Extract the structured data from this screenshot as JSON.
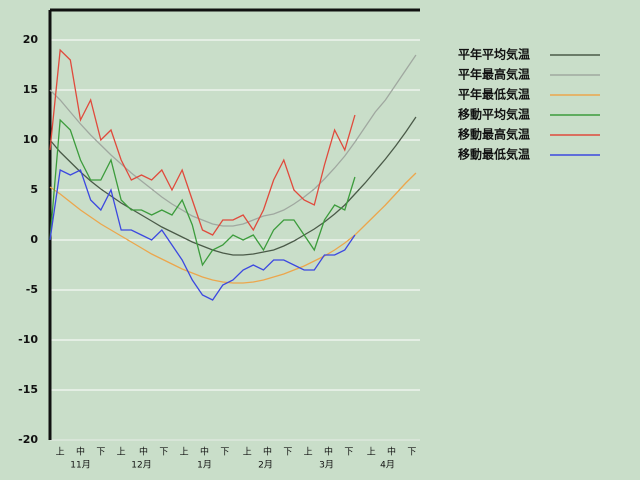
{
  "chart_data": {
    "type": "line",
    "x": [
      0,
      5,
      10,
      15,
      20,
      25,
      30,
      35,
      40,
      45,
      50,
      55,
      60,
      65,
      70,
      75,
      80,
      85,
      90,
      95,
      100,
      105,
      110,
      115,
      120,
      125,
      130,
      135,
      140,
      145,
      150,
      155,
      160,
      165,
      170,
      175,
      180
    ],
    "xlim": [
      0,
      182
    ],
    "ylim": [
      -20,
      23
    ],
    "yticks": [
      -20,
      -15,
      -10,
      -5,
      0,
      5,
      10,
      15,
      20
    ],
    "grid": true,
    "legend": "right",
    "xticks": [
      {
        "value": 5,
        "label": "上"
      },
      {
        "value": 15,
        "label": "中"
      },
      {
        "value": 25,
        "label": "下"
      },
      {
        "value": 35,
        "label": "上"
      },
      {
        "value": 46,
        "label": "中"
      },
      {
        "value": 56,
        "label": "下"
      },
      {
        "value": 66,
        "label": "上"
      },
      {
        "value": 76,
        "label": "中"
      },
      {
        "value": 86,
        "label": "下"
      },
      {
        "value": 97,
        "label": "上"
      },
      {
        "value": 107,
        "label": "中"
      },
      {
        "value": 117,
        "label": "下"
      },
      {
        "value": 127,
        "label": "上"
      },
      {
        "value": 137,
        "label": "中"
      },
      {
        "value": 147,
        "label": "下"
      },
      {
        "value": 158,
        "label": "上"
      },
      {
        "value": 168,
        "label": "中"
      },
      {
        "value": 178,
        "label": "下"
      }
    ],
    "month_ticks": [
      {
        "value": 15,
        "label": "11月"
      },
      {
        "value": 45,
        "label": "12月"
      },
      {
        "value": 76,
        "label": "1月"
      },
      {
        "value": 106,
        "label": "2月"
      },
      {
        "value": 136,
        "label": "3月"
      },
      {
        "value": 166,
        "label": "4月"
      }
    ],
    "series": [
      {
        "name": "平年平均気温",
        "color": "#4a5a48",
        "values": [
          10,
          8.8,
          7.8,
          6.8,
          5.9,
          5.1,
          4.4,
          3.7,
          3.1,
          2.5,
          1.9,
          1.3,
          0.8,
          0.3,
          -0.2,
          -0.6,
          -1.0,
          -1.3,
          -1.5,
          -1.5,
          -1.4,
          -1.2,
          -1.0,
          -0.6,
          -0.1,
          0.5,
          1.1,
          1.8,
          2.6,
          3.5,
          4.6,
          5.7,
          6.9,
          8.1,
          9.4,
          10.8,
          12.3
        ]
      },
      {
        "name": "平年最高気温",
        "color": "#a0a8a0",
        "values": [
          15,
          14,
          12.8,
          11.6,
          10.5,
          9.5,
          8.5,
          7.6,
          6.7,
          5.9,
          5.1,
          4.3,
          3.6,
          3.0,
          2.4,
          2.0,
          1.6,
          1.4,
          1.4,
          1.6,
          2.0,
          2.4,
          2.6,
          3.0,
          3.6,
          4.3,
          5.1,
          6.1,
          7.2,
          8.4,
          9.8,
          11.3,
          12.8,
          14.0,
          15.5,
          17.0,
          18.5
        ]
      },
      {
        "name": "平年最低気温",
        "color": "#eca64c",
        "values": [
          5.3,
          4.6,
          3.8,
          3.0,
          2.3,
          1.6,
          1.0,
          0.4,
          -0.2,
          -0.8,
          -1.4,
          -1.9,
          -2.4,
          -2.9,
          -3.3,
          -3.7,
          -4.0,
          -4.2,
          -4.3,
          -4.3,
          -4.2,
          -4.0,
          -3.7,
          -3.4,
          -3.0,
          -2.6,
          -2.1,
          -1.6,
          -1.0,
          -0.3,
          0.5,
          1.5,
          2.5,
          3.5,
          4.6,
          5.7,
          6.7
        ]
      },
      {
        "name": "移動平均気温",
        "color": "#3c9c3c",
        "values": [
          0,
          12,
          11,
          8,
          6,
          6,
          8,
          4,
          3,
          3,
          2.5,
          3,
          2.5,
          4,
          1.5,
          -2.5,
          -1,
          -0.5,
          0.5,
          0,
          0.5,
          -1,
          1,
          2,
          2,
          0.5,
          -1,
          2,
          3.5,
          3,
          6.3,
          null,
          null,
          null,
          null,
          null,
          null
        ]
      },
      {
        "name": "移動最高気温",
        "color": "#e04a3c",
        "values": [
          9,
          19,
          18,
          12,
          14,
          10,
          11,
          8,
          6,
          6.5,
          6,
          7,
          5,
          7,
          4,
          1,
          0.5,
          2,
          2,
          2.5,
          1,
          3,
          6,
          8,
          5,
          4,
          3.5,
          7.5,
          11,
          9,
          12.5,
          null,
          null,
          null,
          null,
          null,
          null
        ]
      },
      {
        "name": "移動最低気温",
        "color": "#3c48e0",
        "values": [
          0,
          7,
          6.5,
          7,
          4,
          3,
          5,
          1,
          1,
          0.5,
          0,
          1,
          -0.5,
          -2,
          -4,
          -5.5,
          -6,
          -4.5,
          -4,
          -3,
          -2.5,
          -3,
          -2,
          -2,
          -2.5,
          -3,
          -3,
          -1.5,
          -1.5,
          -1,
          0.5,
          null,
          null,
          null,
          null,
          null,
          null
        ]
      }
    ]
  }
}
